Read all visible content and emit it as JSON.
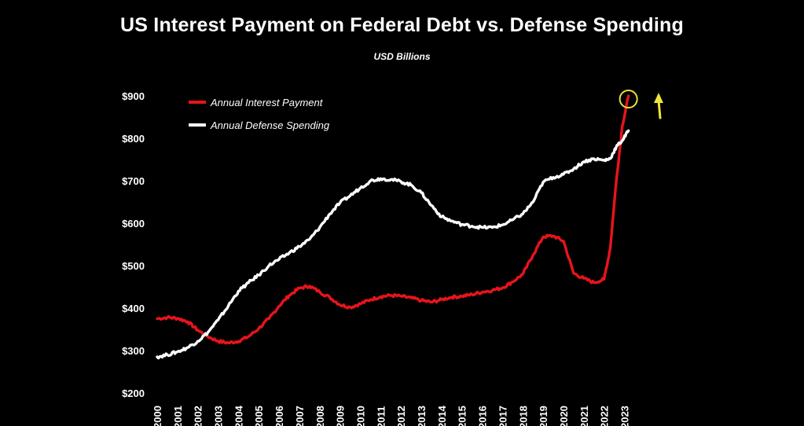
{
  "chart_data": {
    "type": "line",
    "title": "US Interest Payment on Federal Debt vs. Defense Spending",
    "subtitle": "USD Billions",
    "ylim": [
      200,
      900
    ],
    "yticks": [
      "$200",
      "$300",
      "$400",
      "$500",
      "$600",
      "$700",
      "$800",
      "$900"
    ],
    "ytick_values": [
      200,
      300,
      400,
      500,
      600,
      700,
      800,
      900
    ],
    "xticks": [
      "2000",
      "2001",
      "2002",
      "2003",
      "2004",
      "2005",
      "2006",
      "2007",
      "2008",
      "2009",
      "2010",
      "2011",
      "2012",
      "2013",
      "2014",
      "2015",
      "2016",
      "2017",
      "2018",
      "2019",
      "2020",
      "2021",
      "2022",
      "2023"
    ],
    "xlim": [
      2000,
      2023.6
    ],
    "legend_position": "top-left",
    "series": [
      {
        "name": "Annual Interest Payment",
        "color": "#e8141b",
        "points": [
          [
            2000.0,
            375
          ],
          [
            2000.5,
            378
          ],
          [
            2001.0,
            376
          ],
          [
            2001.5,
            368
          ],
          [
            2002.0,
            348
          ],
          [
            2002.5,
            333
          ],
          [
            2003.0,
            322
          ],
          [
            2003.5,
            318
          ],
          [
            2004.0,
            322
          ],
          [
            2004.5,
            333
          ],
          [
            2005.0,
            352
          ],
          [
            2005.5,
            375
          ],
          [
            2006.0,
            405
          ],
          [
            2006.5,
            430
          ],
          [
            2007.0,
            447
          ],
          [
            2007.5,
            452
          ],
          [
            2008.0,
            438
          ],
          [
            2008.5,
            425
          ],
          [
            2009.0,
            408
          ],
          [
            2009.5,
            402
          ],
          [
            2010.0,
            410
          ],
          [
            2010.5,
            420
          ],
          [
            2011.0,
            427
          ],
          [
            2011.5,
            430
          ],
          [
            2012.0,
            428
          ],
          [
            2012.5,
            424
          ],
          [
            2013.0,
            418
          ],
          [
            2013.5,
            414
          ],
          [
            2014.0,
            420
          ],
          [
            2014.5,
            426
          ],
          [
            2015.0,
            428
          ],
          [
            2015.5,
            432
          ],
          [
            2016.0,
            438
          ],
          [
            2016.5,
            442
          ],
          [
            2017.0,
            448
          ],
          [
            2017.5,
            462
          ],
          [
            2018.0,
            480
          ],
          [
            2018.5,
            525
          ],
          [
            2019.0,
            568
          ],
          [
            2019.5,
            570
          ],
          [
            2020.0,
            558
          ],
          [
            2020.5,
            482
          ],
          [
            2021.0,
            470
          ],
          [
            2021.5,
            460
          ],
          [
            2022.0,
            468
          ],
          [
            2022.3,
            540
          ],
          [
            2022.6,
            700
          ],
          [
            2022.9,
            830
          ],
          [
            2023.2,
            900
          ]
        ]
      },
      {
        "name": "Annual Defense Spending",
        "color": "#ffffff",
        "points": [
          [
            2000.0,
            285
          ],
          [
            2000.5,
            290
          ],
          [
            2001.0,
            297
          ],
          [
            2001.5,
            307
          ],
          [
            2002.0,
            322
          ],
          [
            2002.5,
            343
          ],
          [
            2003.0,
            372
          ],
          [
            2003.5,
            405
          ],
          [
            2004.0,
            440
          ],
          [
            2004.5,
            460
          ],
          [
            2005.0,
            478
          ],
          [
            2005.5,
            500
          ],
          [
            2006.0,
            515
          ],
          [
            2006.5,
            530
          ],
          [
            2007.0,
            545
          ],
          [
            2007.5,
            562
          ],
          [
            2008.0,
            590
          ],
          [
            2008.5,
            622
          ],
          [
            2009.0,
            648
          ],
          [
            2009.5,
            665
          ],
          [
            2010.0,
            683
          ],
          [
            2010.5,
            700
          ],
          [
            2011.0,
            705
          ],
          [
            2011.5,
            703
          ],
          [
            2012.0,
            698
          ],
          [
            2012.5,
            690
          ],
          [
            2013.0,
            672
          ],
          [
            2013.5,
            642
          ],
          [
            2014.0,
            615
          ],
          [
            2014.5,
            605
          ],
          [
            2015.0,
            597
          ],
          [
            2015.5,
            593
          ],
          [
            2016.0,
            590
          ],
          [
            2016.5,
            590
          ],
          [
            2017.0,
            596
          ],
          [
            2017.5,
            608
          ],
          [
            2018.0,
            622
          ],
          [
            2018.5,
            650
          ],
          [
            2019.0,
            697
          ],
          [
            2019.5,
            708
          ],
          [
            2020.0,
            715
          ],
          [
            2020.5,
            728
          ],
          [
            2021.0,
            745
          ],
          [
            2021.5,
            752
          ],
          [
            2022.0,
            748
          ],
          [
            2022.3,
            752
          ],
          [
            2022.6,
            780
          ],
          [
            2022.9,
            795
          ],
          [
            2023.2,
            818
          ]
        ]
      }
    ],
    "annotations": [
      {
        "type": "circle",
        "color": "#e8e23a",
        "at": [
          2023.2,
          900
        ]
      },
      {
        "type": "arrow-up",
        "color": "#f2e33a"
      }
    ]
  }
}
